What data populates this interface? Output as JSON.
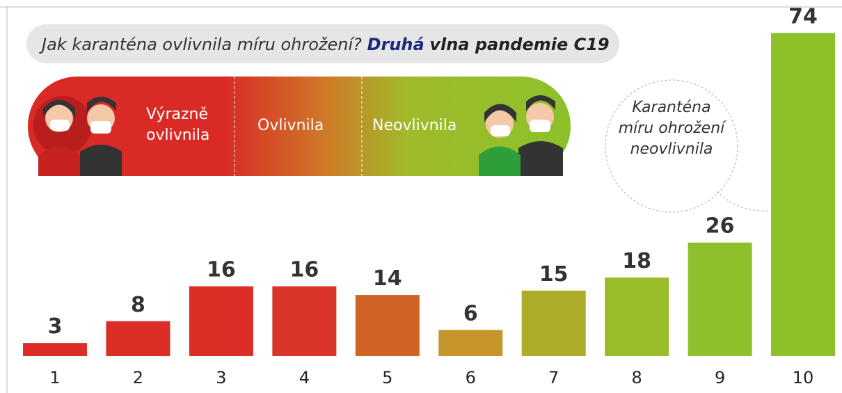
{
  "chart_data": {
    "type": "bar",
    "title": {
      "question": "Jak karanténa ovlivnila míru ohrožení?",
      "highlight": "Druhá",
      "rest": "vlna pandemie C19"
    },
    "scale_labels": [
      "Výrazně ovlivnila",
      "Ovlivnila",
      "Neovlivnila"
    ],
    "annotation": "Karanténa míru ohrožení neovlivnila",
    "categories": [
      "1",
      "2",
      "3",
      "4",
      "5",
      "6",
      "7",
      "8",
      "9",
      "10"
    ],
    "values": [
      3,
      8,
      16,
      16,
      14,
      6,
      15,
      18,
      26,
      74
    ],
    "colors": [
      "#dc2d27",
      "#dc2d27",
      "#dc2d27",
      "#d9352a",
      "#d06425",
      "#c6962c",
      "#adac2a",
      "#99bc2a",
      "#8fbf2a",
      "#8cc12a"
    ]
  }
}
